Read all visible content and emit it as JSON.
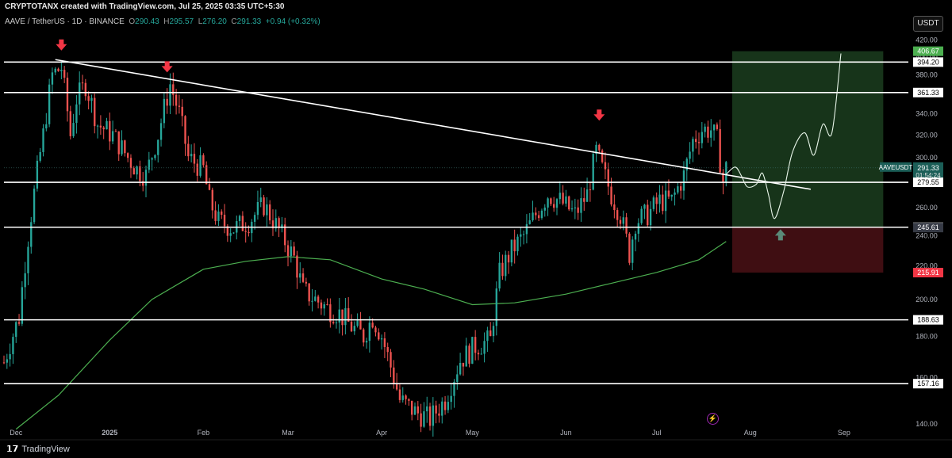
{
  "header": {
    "attribution": "CRYPTOTANX created with TradingView.com, Jul 25, 2025 03:35 UTC+5:30",
    "pair": "AAVE / TetherUS · 1D · BINANCE",
    "o_label": "O",
    "o_value": "290.43",
    "h_label": "H",
    "h_value": "295.57",
    "l_label": "L",
    "l_value": "276.20",
    "c_label": "C",
    "c_value": "291.33",
    "change": "+0.94 (+0.32%)",
    "currency_button": "USDT"
  },
  "footer": {
    "brand": "TradingView"
  },
  "colors": {
    "up": "#26a69a",
    "down": "#ef5350",
    "level": "#ffffff",
    "ma": "#4caf50",
    "target_zone": "#1b3d1f",
    "stop_zone": "#4a1015",
    "arrow": "#f23645",
    "up_arrow": "#5a8a78"
  },
  "chart_data": {
    "type": "candlestick",
    "symbol": "AAVE / TetherUS",
    "interval": "1D",
    "exchange": "BINANCE",
    "y_scale": "log",
    "ylim": [
      136,
      430
    ],
    "y_ticks": [
      140,
      160,
      180,
      200,
      220,
      240,
      260,
      280,
      300,
      320,
      340,
      360,
      380,
      400,
      420
    ],
    "x_ticks": [
      "Dec",
      "2025",
      "Feb",
      "Mar",
      "Apr",
      "May",
      "Jun",
      "Jul",
      "Aug",
      "Sep"
    ],
    "x_range": [
      "2024-11-27",
      "2025-09-21"
    ],
    "horizontal_levels": [
      394.2,
      361.33,
      279.55,
      245.83,
      188.63,
      157.16
    ],
    "price_labels": [
      {
        "text": "406.67",
        "value": 406.67,
        "kind": "target"
      },
      {
        "text": "394.20",
        "value": 394.2,
        "kind": "level"
      },
      {
        "text": "361.33",
        "value": 361.33,
        "kind": "level"
      },
      {
        "text": "291.33",
        "value": 291.33,
        "kind": "last",
        "symbol": "AAVEUSDT",
        "countdown": "01:54:24"
      },
      {
        "text": "279.55",
        "value": 279.55,
        "kind": "level"
      },
      {
        "text": "245.83",
        "value": 245.83,
        "kind": "level"
      },
      {
        "text": "245.61",
        "value": 245.61,
        "kind": "entry"
      },
      {
        "text": "215.91",
        "value": 215.91,
        "kind": "stop"
      },
      {
        "text": "188.63",
        "value": 188.63,
        "kind": "level"
      },
      {
        "text": "157.16",
        "value": 157.16,
        "kind": "level"
      }
    ],
    "trendline": {
      "from": [
        "2024-12-14",
        397
      ],
      "to": [
        "2025-08-21",
        274
      ]
    },
    "position": {
      "start": "2025-07-26",
      "end": "2025-09-14",
      "entry": 245.61,
      "target": 406.67,
      "stop": 215.91
    },
    "projection": [
      [
        "2025-07-24",
        286
      ],
      [
        "2025-07-27",
        292
      ],
      [
        "2025-07-29",
        285
      ],
      [
        "2025-07-31",
        276
      ],
      [
        "2025-08-03",
        278
      ],
      [
        "2025-08-05",
        287
      ],
      [
        "2025-08-07",
        270
      ],
      [
        "2025-08-09",
        252
      ],
      [
        "2025-08-12",
        272
      ],
      [
        "2025-08-15",
        305
      ],
      [
        "2025-08-19",
        322
      ],
      [
        "2025-08-22",
        302
      ],
      [
        "2025-08-25",
        330
      ],
      [
        "2025-08-28",
        322
      ],
      [
        "2025-08-31",
        404
      ]
    ],
    "down_arrows": [
      [
        "2024-12-16",
        413
      ],
      [
        "2025-01-20",
        388
      ],
      [
        "2025-06-12",
        338
      ]
    ],
    "up_arrow": [
      "2025-08-11",
      240
    ],
    "moving_average": [
      [
        "2024-12-01",
        138
      ],
      [
        "2024-12-15",
        152
      ],
      [
        "2025-01-01",
        178
      ],
      [
        "2025-01-15",
        200
      ],
      [
        "2025-02-01",
        218
      ],
      [
        "2025-02-15",
        223
      ],
      [
        "2025-03-01",
        226
      ],
      [
        "2025-03-15",
        224
      ],
      [
        "2025-04-01",
        212
      ],
      [
        "2025-04-15",
        206
      ],
      [
        "2025-05-01",
        197
      ],
      [
        "2025-05-15",
        198
      ],
      [
        "2025-06-01",
        203
      ],
      [
        "2025-06-15",
        209
      ],
      [
        "2025-07-01",
        216
      ],
      [
        "2025-07-15",
        224
      ],
      [
        "2025-07-24",
        236
      ]
    ],
    "close_path": [
      [
        "2024-11-27",
        167
      ],
      [
        "2024-12-02",
        190
      ],
      [
        "2024-12-06",
        255
      ],
      [
        "2024-12-10",
        320
      ],
      [
        "2024-12-13",
        380
      ],
      [
        "2024-12-16",
        388
      ],
      [
        "2024-12-19",
        320
      ],
      [
        "2024-12-21",
        355
      ],
      [
        "2024-12-24",
        370
      ],
      [
        "2024-12-28",
        330
      ],
      [
        "2025-01-02",
        320
      ],
      [
        "2025-01-07",
        300
      ],
      [
        "2025-01-10",
        290
      ],
      [
        "2025-01-13",
        285
      ],
      [
        "2025-01-17",
        320
      ],
      [
        "2025-01-21",
        370
      ],
      [
        "2025-01-24",
        340
      ],
      [
        "2025-01-27",
        300
      ],
      [
        "2025-02-01",
        290
      ],
      [
        "2025-02-03",
        265
      ],
      [
        "2025-02-06",
        250
      ],
      [
        "2025-02-11",
        245
      ],
      [
        "2025-02-16",
        250
      ],
      [
        "2025-02-21",
        262
      ],
      [
        "2025-02-27",
        240
      ],
      [
        "2025-03-03",
        225
      ],
      [
        "2025-03-06",
        205
      ],
      [
        "2025-03-10",
        200
      ],
      [
        "2025-03-14",
        195
      ],
      [
        "2025-03-18",
        192
      ],
      [
        "2025-03-22",
        185
      ],
      [
        "2025-03-26",
        180
      ],
      [
        "2025-03-29",
        190
      ],
      [
        "2025-04-01",
        180
      ],
      [
        "2025-04-04",
        165
      ],
      [
        "2025-04-07",
        150
      ],
      [
        "2025-04-12",
        145
      ],
      [
        "2025-04-17",
        142
      ],
      [
        "2025-04-22",
        150
      ],
      [
        "2025-04-27",
        168
      ],
      [
        "2025-05-02",
        175
      ],
      [
        "2025-05-07",
        178
      ],
      [
        "2025-05-10",
        215
      ],
      [
        "2025-05-14",
        230
      ],
      [
        "2025-05-18",
        240
      ],
      [
        "2025-05-22",
        255
      ],
      [
        "2025-05-26",
        270
      ],
      [
        "2025-05-30",
        265
      ],
      [
        "2025-06-04",
        255
      ],
      [
        "2025-06-08",
        270
      ],
      [
        "2025-06-11",
        305
      ],
      [
        "2025-06-13",
        290
      ],
      [
        "2025-06-16",
        270
      ],
      [
        "2025-06-19",
        255
      ],
      [
        "2025-06-22",
        228
      ],
      [
        "2025-06-24",
        250
      ],
      [
        "2025-06-28",
        255
      ],
      [
        "2025-07-02",
        265
      ],
      [
        "2025-07-06",
        265
      ],
      [
        "2025-07-10",
        285
      ],
      [
        "2025-07-13",
        315
      ],
      [
        "2025-07-16",
        325
      ],
      [
        "2025-07-19",
        325
      ],
      [
        "2025-07-21",
        315
      ],
      [
        "2025-07-23",
        280
      ],
      [
        "2025-07-24",
        291
      ]
    ]
  }
}
